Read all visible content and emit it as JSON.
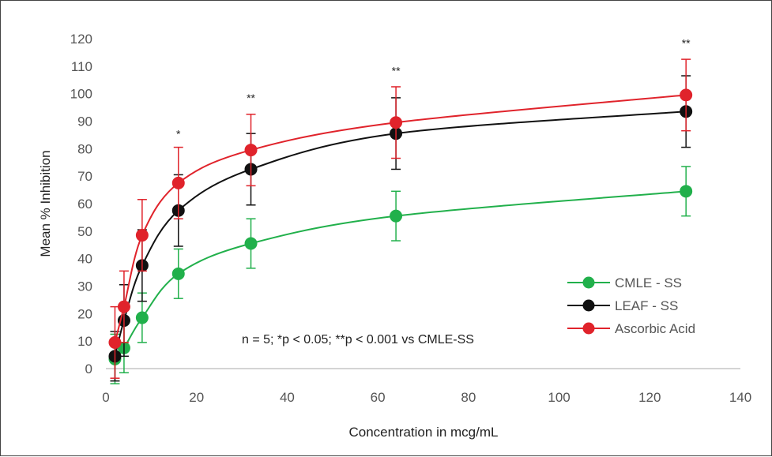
{
  "chart_data": {
    "type": "line",
    "xlabel": "Concentration in mcg/mL",
    "ylabel": "Mean % Inhibition",
    "xlim": [
      0,
      140
    ],
    "ylim": [
      0,
      120
    ],
    "x_ticks": [
      0,
      20,
      40,
      60,
      80,
      100,
      120,
      140
    ],
    "y_ticks": [
      0,
      10,
      20,
      30,
      40,
      50,
      60,
      70,
      80,
      90,
      100,
      110,
      120
    ],
    "x_tick_labels": [
      "0",
      "20",
      "40",
      "60",
      "80",
      "100",
      "120",
      "140"
    ],
    "y_tick_labels": [
      "0",
      "10",
      "20",
      "30",
      "40",
      "50",
      "60",
      "70",
      "80",
      "90",
      "100",
      "110",
      "120"
    ],
    "grid": false,
    "legend_position": "right",
    "x": [
      2,
      4,
      8,
      16,
      32,
      64,
      128
    ],
    "series": [
      {
        "name": "CMLE - SS",
        "color": "#21b04b",
        "values": [
          3.5,
          7.5,
          18.5,
          34.5,
          45.5,
          55.5,
          64.5
        ],
        "errors": [
          9,
          9,
          9,
          9,
          9,
          9,
          9
        ]
      },
      {
        "name": "LEAF - SS",
        "color": "#111111",
        "values": [
          4.5,
          17.5,
          37.5,
          57.5,
          72.5,
          85.5,
          93.5
        ],
        "errors": [
          9,
          13,
          13,
          13,
          13,
          13,
          13
        ]
      },
      {
        "name": "Ascorbic Acid",
        "color": "#e0232b",
        "values": [
          9.5,
          22.5,
          48.5,
          67.5,
          79.5,
          89.5,
          99.5
        ],
        "errors": [
          13,
          13,
          13,
          13,
          13,
          13,
          13
        ]
      }
    ],
    "significance": [
      {
        "x": 16,
        "y": 84,
        "label": "*"
      },
      {
        "x": 32,
        "y": 97,
        "label": "**"
      },
      {
        "x": 64,
        "y": 107,
        "label": "**"
      },
      {
        "x": 128,
        "y": 117,
        "label": "**"
      }
    ],
    "annotation": "n = 5; *p < 0.05; **p < 0.001  vs CMLE-SS"
  }
}
